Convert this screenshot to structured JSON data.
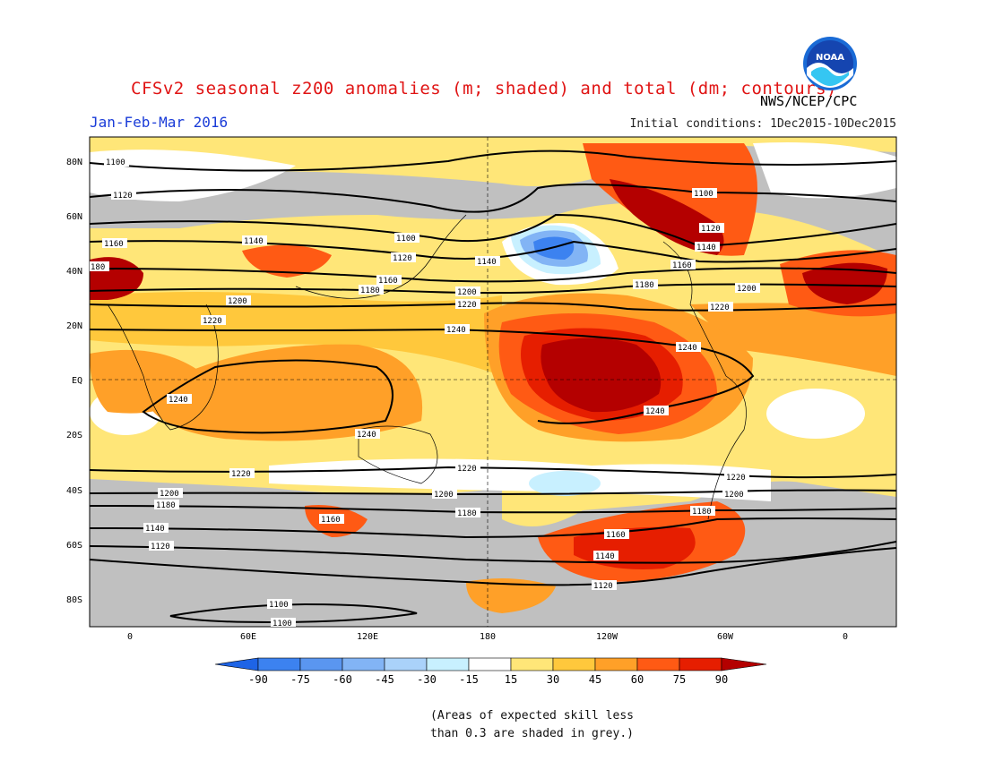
{
  "header": {
    "title": "CFSv2 seasonal z200 anomalies (m; shaded) and total (dm; contours)",
    "agency": "NWS/NCEP/CPC",
    "season": "Jan-Feb-Mar 2016",
    "initial_conditions": "Initial conditions: 1Dec2015-10Dec2015",
    "logo_text": "NOAA"
  },
  "map": {
    "lat_labels": [
      "80N",
      "60N",
      "40N",
      "20N",
      "EQ",
      "20S",
      "40S",
      "60S",
      "80S"
    ],
    "lon_labels": [
      "0",
      "60E",
      "120E",
      "180",
      "120W",
      "60W",
      "0"
    ],
    "contour_labels": [
      "1100",
      "1120",
      "1140",
      "1160",
      "1180",
      "1200",
      "1220",
      "1240"
    ]
  },
  "colorbar": {
    "levels": [
      "-90",
      "-75",
      "-60",
      "-45",
      "-30",
      "-15",
      "15",
      "30",
      "45",
      "60",
      "75",
      "90"
    ],
    "colors": [
      "#1e64e6",
      "#3c82f0",
      "#5a96f0",
      "#82b4f5",
      "#aad2fa",
      "#c8f0ff",
      "#ffffff",
      "#ffe678",
      "#ffc83c",
      "#ffa028",
      "#ff5a14",
      "#e61e00",
      "#b40000"
    ]
  },
  "note": {
    "line1": "(Areas of expected skill less",
    "line2": "than 0.3 are shaded in grey.)"
  }
}
